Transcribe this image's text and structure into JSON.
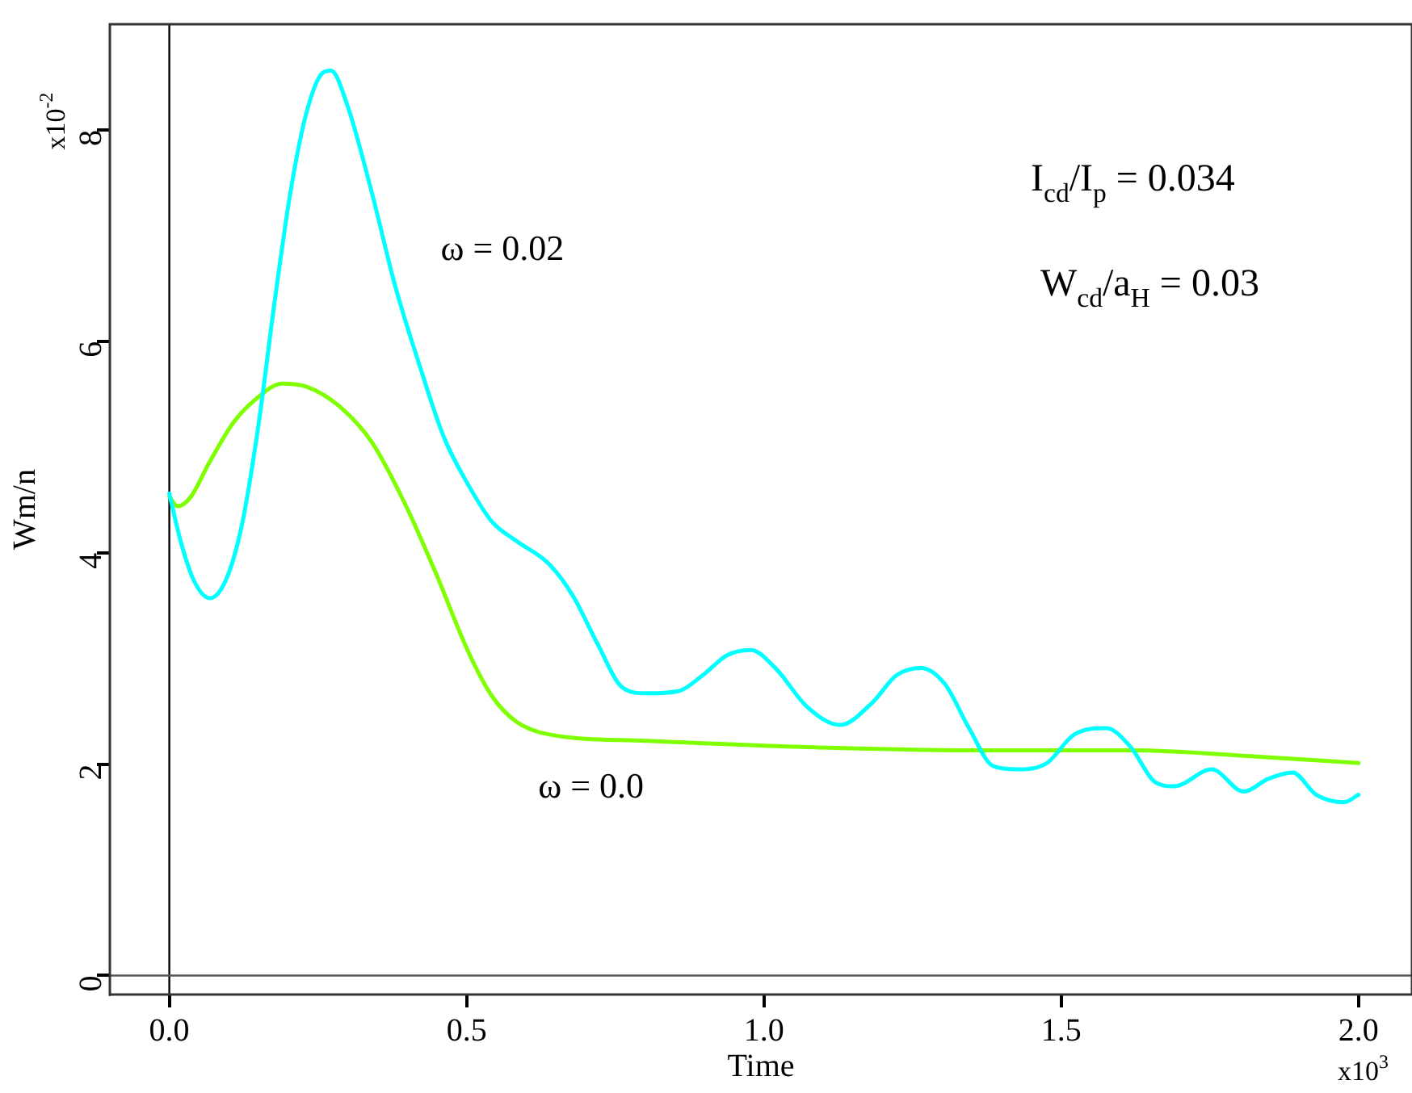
{
  "chart_data": {
    "type": "line",
    "xlabel": "Time",
    "ylabel": "Wm/n",
    "annotations": [
      "I$_{cd}$/I$_{p}$ = 0.034",
      "W$_{cd}$/a$_{H}$ = 0.03",
      "x10$^{-2}$",
      "x10$^{3}$"
    ],
    "xlim": [
      -0.1,
      2.09
    ],
    "ylim": [
      -0.18,
      9.0
    ],
    "xticks": [
      {
        "value": 0,
        "label": "0.0"
      },
      {
        "value": 0.5,
        "label": "0.5"
      },
      {
        "value": 1,
        "label": "1.0"
      },
      {
        "value": 1.5,
        "label": "1.5"
      },
      {
        "value": 2,
        "label": "2.0"
      }
    ],
    "yticks": [
      0,
      2,
      4,
      6,
      8
    ],
    "ref_lines": [
      {
        "axis": "x",
        "value": 0,
        "color": "#000000"
      },
      {
        "axis": "y",
        "value": 0,
        "color": "#555555"
      }
    ],
    "grid": false,
    "legend": false,
    "marker": "none",
    "line_style": "solid",
    "series": [
      {
        "name": "ω = 0.02",
        "color": "#00ffff",
        "x": [
          0,
          0.019,
          0.041,
          0.068,
          0.095,
          0.122,
          0.149,
          0.177,
          0.204,
          0.231,
          0.258,
          0.272,
          0.299,
          0.34,
          0.38,
          0.421,
          0.462,
          0.503,
          0.543,
          0.584,
          0.639,
          0.679,
          0.72,
          0.761,
          0.802,
          0.856,
          0.897,
          0.938,
          0.978,
          1.019,
          1.073,
          1.128,
          1.182,
          1.223,
          1.264,
          1.304,
          1.345,
          1.386,
          1.427,
          1.476,
          1.522,
          1.576,
          1.617,
          1.658,
          1.69,
          1.753,
          1.807,
          1.848,
          1.889,
          1.929,
          1.976,
          2.0
        ],
        "values": [
          4.56,
          4.11,
          3.74,
          3.57,
          3.74,
          4.26,
          5.17,
          6.37,
          7.42,
          8.17,
          8.54,
          8.56,
          8.24,
          7.42,
          6.52,
          5.77,
          5.09,
          4.64,
          4.29,
          4.11,
          3.89,
          3.59,
          3.14,
          2.73,
          2.67,
          2.69,
          2.84,
          3.03,
          3.08,
          2.91,
          2.54,
          2.37,
          2.58,
          2.84,
          2.91,
          2.76,
          2.34,
          1.98,
          1.95,
          2.01,
          2.28,
          2.34,
          2.16,
          1.83,
          1.79,
          1.95,
          1.74,
          1.86,
          1.92,
          1.71,
          1.64,
          1.71
        ]
      },
      {
        "name": "ω = 0.0",
        "color": "#7fff00",
        "x": [
          0,
          0.014,
          0.035,
          0.068,
          0.109,
          0.149,
          0.19,
          0.231,
          0.285,
          0.34,
          0.394,
          0.448,
          0.503,
          0.543,
          0.584,
          0.639,
          0.802,
          1.073,
          1.345,
          1.617,
          1.834,
          2.0
        ],
        "values": [
          4.53,
          4.44,
          4.52,
          4.86,
          5.24,
          5.47,
          5.6,
          5.57,
          5.39,
          5.05,
          4.49,
          3.81,
          3.06,
          2.64,
          2.4,
          2.28,
          2.22,
          2.16,
          2.13,
          2.13,
          2.07,
          2.01
        ]
      }
    ]
  }
}
